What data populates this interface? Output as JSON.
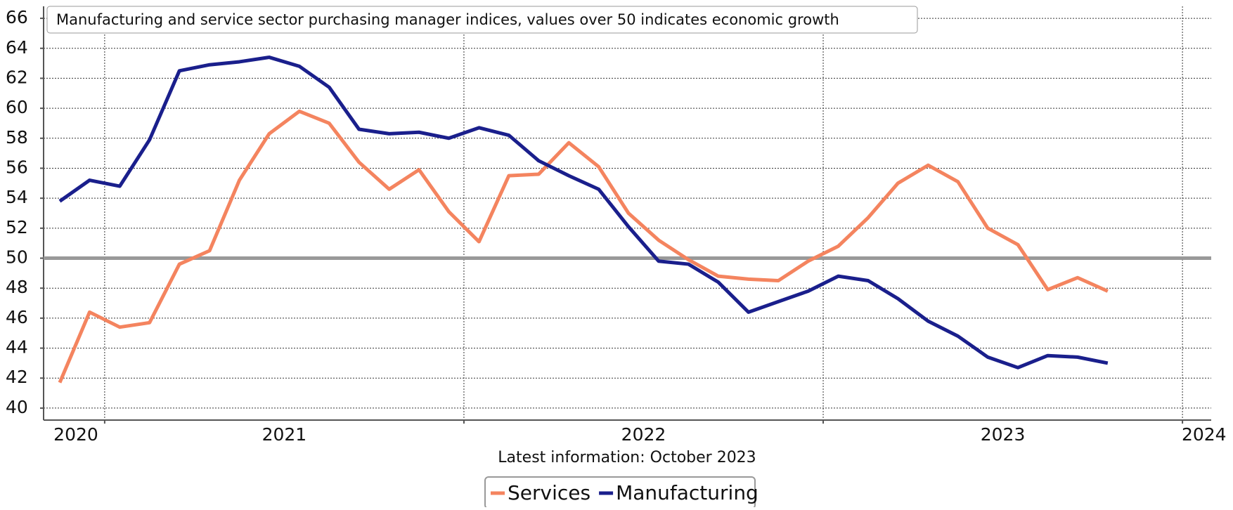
{
  "chart_data": {
    "type": "line",
    "title": "Manufacturing and service sector purchasing manager indices, values over 50 indicates economic growth",
    "footnote": "Latest information: October 2023",
    "x": [
      2020.875,
      2020.958,
      2021.042,
      2021.125,
      2021.208,
      2021.292,
      2021.375,
      2021.458,
      2021.542,
      2021.625,
      2021.708,
      2021.792,
      2021.875,
      2021.958,
      2022.042,
      2022.125,
      2022.208,
      2022.292,
      2022.375,
      2022.458,
      2022.542,
      2022.625,
      2022.708,
      2022.792,
      2022.875,
      2022.958,
      2023.042,
      2023.125,
      2023.208,
      2023.292,
      2023.375,
      2023.458,
      2023.542,
      2023.625,
      2023.708,
      2023.792
    ],
    "series": [
      {
        "name": "Services",
        "color": "#f4845f",
        "values": [
          41.7,
          46.4,
          45.4,
          45.7,
          49.6,
          50.5,
          55.2,
          58.3,
          59.8,
          59.0,
          56.4,
          54.6,
          55.9,
          53.1,
          51.1,
          55.5,
          55.6,
          57.7,
          56.1,
          53.0,
          51.2,
          49.9,
          48.8,
          48.6,
          48.5,
          49.8,
          50.8,
          52.7,
          55.0,
          56.2,
          55.1,
          52.0,
          50.9,
          47.9,
          48.7,
          47.8
        ]
      },
      {
        "name": "Manufacturing",
        "color": "#1a1f8c",
        "values": [
          53.8,
          55.2,
          54.8,
          57.9,
          62.5,
          62.9,
          63.1,
          63.4,
          62.8,
          61.4,
          58.6,
          58.3,
          58.4,
          58.0,
          58.7,
          58.2,
          56.5,
          55.5,
          54.6,
          52.1,
          49.8,
          49.6,
          48.4,
          46.4,
          47.1,
          47.8,
          48.8,
          48.5,
          47.3,
          45.8,
          44.8,
          43.4,
          42.7,
          43.5,
          43.4,
          43.0
        ]
      }
    ],
    "xlim": [
      2020.83,
      2024.08
    ],
    "xticks": [
      2021,
      2022,
      2023,
      2024
    ],
    "year_labels": [
      {
        "value": 2020.92,
        "label": "2020"
      },
      {
        "value": 2021.5,
        "label": "2021"
      },
      {
        "value": 2022.5,
        "label": "2022"
      },
      {
        "value": 2023.5,
        "label": "2023"
      },
      {
        "value": 2024.06,
        "label": "2024"
      }
    ],
    "ylim": [
      39.2,
      66.8
    ],
    "yticks": [
      40,
      42,
      44,
      46,
      48,
      50,
      52,
      54,
      56,
      58,
      60,
      62,
      64,
      66
    ],
    "reference_line": 50,
    "grid": true,
    "legend": "bottom"
  }
}
